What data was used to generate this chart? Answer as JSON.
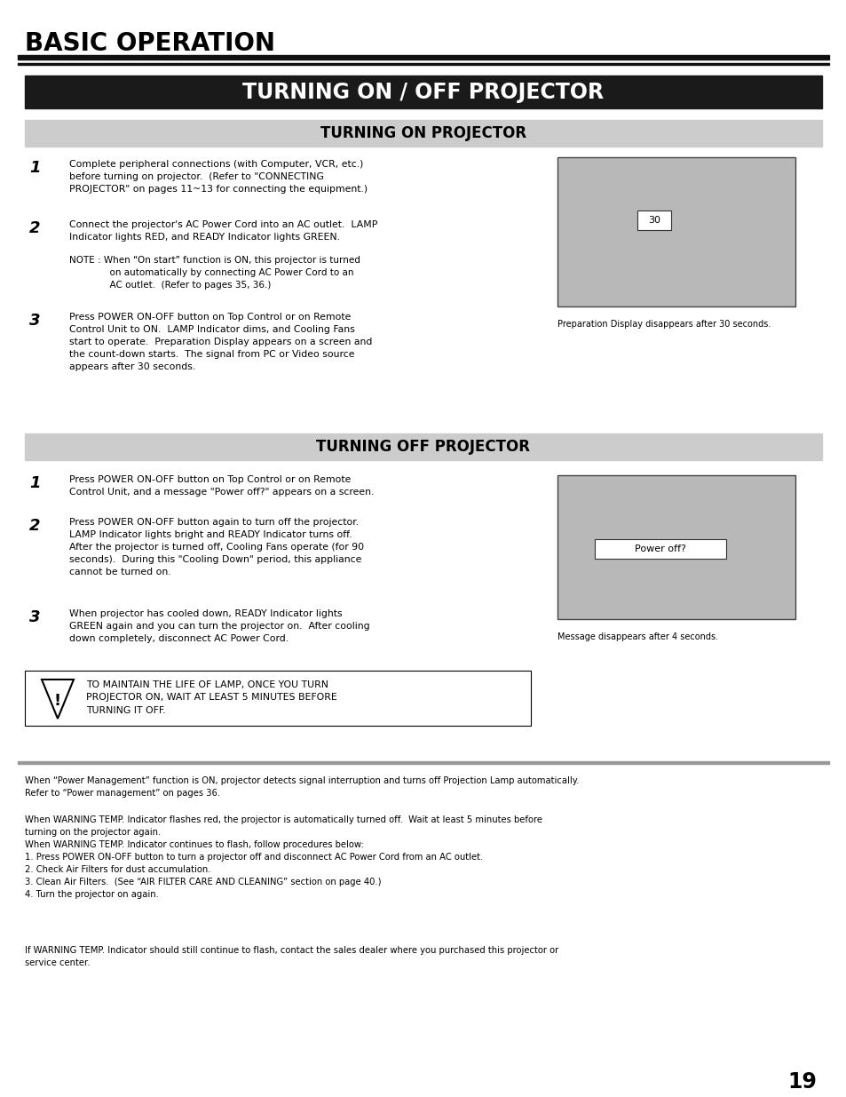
{
  "page_bg": "#ffffff",
  "title_main": "BASIC OPERATION",
  "title_main_color": "#000000",
  "title_main_fontsize": 20,
  "header_bar_color": "#1a1a1a",
  "header_text": "TURNING ON / OFF PROJECTOR",
  "header_text_color": "#ffffff",
  "header_text_fontsize": 17,
  "section_bar_color": "#cccccc",
  "section_on_text": "TURNING ON PROJECTOR",
  "section_off_text": "TURNING OFF PROJECTOR",
  "section_text_color": "#000000",
  "section_fontsize": 12,
  "body_fontsize": 7.8,
  "note_fontsize": 7.5,
  "number_fontsize": 13,
  "image_box_color": "#b8b8b8",
  "image_box_edge": "#444444",
  "page_number": "19",
  "turning_on_step1": "Complete peripheral connections (with Computer, VCR, etc.)\nbefore turning on projector.  (Refer to \"CONNECTING\nPROJECTOR\" on pages 11~13 for connecting the equipment.)",
  "turning_on_step2": "Connect the projector's AC Power Cord into an AC outlet.  LAMP\nIndicator lights RED, and READY Indicator lights GREEN.",
  "note_text": "NOTE : When “On start” function is ON, this projector is turned\n              on automatically by connecting AC Power Cord to an\n              AC outlet.  (Refer to pages 35, 36.)",
  "turning_on_step3": "Press POWER ON-OFF button on Top Control or on Remote\nControl Unit to ON.  LAMP Indicator dims, and Cooling Fans\nstart to operate.  Preparation Display appears on a screen and\nthe count-down starts.  The signal from PC or Video source\nappears after 30 seconds.",
  "prep_display_caption": "Preparation Display disappears after 30 seconds.",
  "prep_display_number": "30",
  "turning_off_step1": "Press POWER ON-OFF button on Top Control or on Remote\nControl Unit, and a message \"Power off?\" appears on a screen.",
  "turning_off_step2": "Press POWER ON-OFF button again to turn off the projector.\nLAMP Indicator lights bright and READY Indicator turns off.\nAfter the projector is turned off, Cooling Fans operate (for 90\nseconds).  During this \"Cooling Down\" period, this appliance\ncannot be turned on.",
  "turning_off_step3": "When projector has cooled down, READY Indicator lights\nGREEN again and you can turn the projector on.  After cooling\ndown completely, disconnect AC Power Cord.",
  "power_off_caption": "Message disappears after 4 seconds.",
  "power_off_label": "Power off?",
  "warning_text": "TO MAINTAIN THE LIFE OF LAMP, ONCE YOU TURN\nPROJECTOR ON, WAIT AT LEAST 5 MINUTES BEFORE\nTURNING IT OFF.",
  "bottom_text1": "When “Power Management” function is ON, projector detects signal interruption and turns off Projection Lamp automatically.\nRefer to “Power management” on pages 36.",
  "bottom_text2": "When WARNING TEMP. Indicator flashes red, the projector is automatically turned off.  Wait at least 5 minutes before\nturning on the projector again.\nWhen WARNING TEMP. Indicator continues to flash, follow procedures below:\n1. Press POWER ON-OFF button to turn a projector off and disconnect AC Power Cord from an AC outlet.\n2. Check Air Filters for dust accumulation.\n3. Clean Air Filters.  (See “AIR FILTER CARE AND CLEANING” section on page 40.)\n4. Turn the projector on again.",
  "bottom_text3": "If WARNING TEMP. Indicator should still continue to flash, contact the sales dealer where you purchased this projector or\nservice center."
}
